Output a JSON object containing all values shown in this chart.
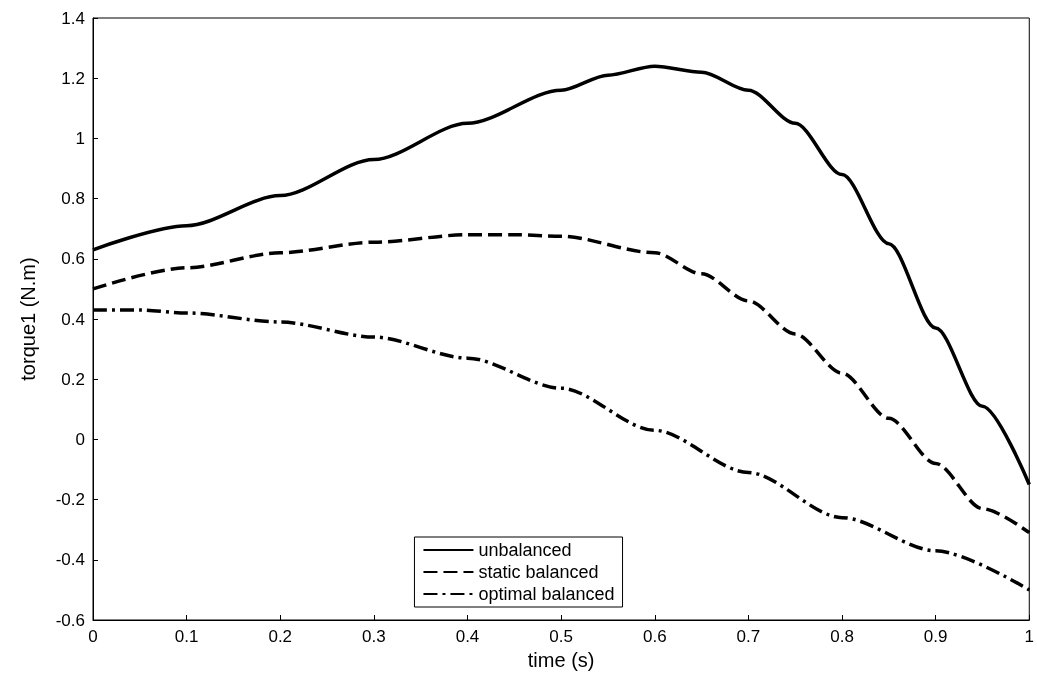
{
  "chart_data": {
    "type": "line",
    "xlabel": "time (s)",
    "ylabel": "torque1 (N.m)",
    "xlim": [
      0,
      1
    ],
    "xticks": [
      0,
      0.1,
      0.2,
      0.3,
      0.4,
      0.5,
      0.6,
      0.7,
      0.8,
      0.9,
      1
    ],
    "ylim": [
      -0.6,
      1.4
    ],
    "yticks": [
      -0.6,
      -0.4,
      -0.2,
      0,
      0.2,
      0.4,
      0.6,
      0.8,
      1,
      1.2,
      1.4
    ],
    "grid": false,
    "legend": "bottom",
    "marker": "none",
    "series": [
      {
        "name": "unbalanced",
        "color": "#000000",
        "line_style": "solid",
        "x": [
          0,
          0.1,
          0.2,
          0.3,
          0.4,
          0.5,
          0.55,
          0.6,
          0.65,
          0.7,
          0.75,
          0.8,
          0.85,
          0.9,
          0.95,
          1
        ],
        "values": [
          0.63,
          0.71,
          0.81,
          0.93,
          1.05,
          1.16,
          1.21,
          1.24,
          1.22,
          1.16,
          1.05,
          0.88,
          0.65,
          0.37,
          0.11,
          -0.15
        ]
      },
      {
        "name": "static balanced",
        "color": "#000000",
        "line_style": "dashed",
        "x": [
          0,
          0.1,
          0.2,
          0.3,
          0.4,
          0.45,
          0.5,
          0.6,
          0.65,
          0.7,
          0.75,
          0.8,
          0.85,
          0.9,
          0.95,
          1
        ],
        "values": [
          0.5,
          0.57,
          0.62,
          0.655,
          0.68,
          0.68,
          0.675,
          0.62,
          0.55,
          0.46,
          0.35,
          0.22,
          0.07,
          -0.08,
          -0.23,
          -0.31
        ]
      },
      {
        "name": "optimal balanced",
        "color": "#000000",
        "line_style": "dashdot",
        "x": [
          0,
          0.05,
          0.1,
          0.2,
          0.3,
          0.4,
          0.5,
          0.6,
          0.7,
          0.8,
          0.9,
          1
        ],
        "values": [
          0.43,
          0.43,
          0.42,
          0.39,
          0.34,
          0.27,
          0.17,
          0.03,
          -0.11,
          -0.26,
          -0.37,
          -0.5
        ]
      }
    ]
  }
}
